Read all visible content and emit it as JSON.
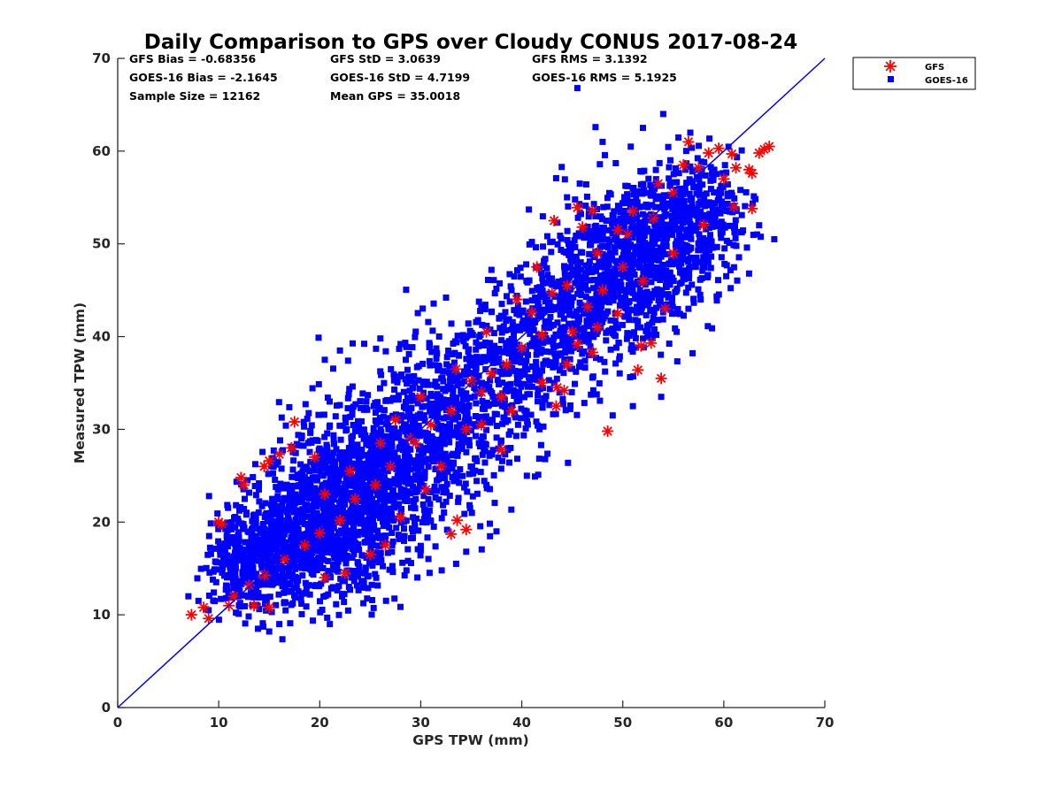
{
  "chart_data": {
    "type": "scatter",
    "title": "Daily Comparison to GPS over Cloudy CONUS 2017-08-24",
    "xlabel": "GPS TPW (mm)",
    "ylabel": "Measured TPW (mm)",
    "xlim": [
      0,
      70
    ],
    "ylim": [
      0,
      70
    ],
    "xticks": [
      "0",
      "10",
      "20",
      "30",
      "40",
      "50",
      "60",
      "70"
    ],
    "yticks": [
      "0",
      "10",
      "20",
      "30",
      "40",
      "50",
      "60",
      "70"
    ],
    "grid": false,
    "legend_position": "outside-top-right",
    "one_to_one_line": {
      "x": [
        0,
        70
      ],
      "y": [
        0,
        70
      ],
      "color": "#0000ff"
    },
    "stats": {
      "gfs_bias": "GFS Bias = -0.68356",
      "gfs_std": "GFS StD = 3.0639",
      "gfs_rms": "GFS RMS = 3.1392",
      "goes_bias": "GOES-16 Bias = -2.1645",
      "goes_std": "GOES-16 StD = 4.7199",
      "goes_rms": "GOES-16 RMS = 5.1925",
      "sample_size": "Sample Size = 12162",
      "mean_gps": "Mean GPS = 35.0018"
    },
    "series": [
      {
        "name": "GFS",
        "marker": "asterisk",
        "color": "#ff0000",
        "points": [
          [
            7.3,
            10.0
          ],
          [
            8.5,
            10.8
          ],
          [
            9.0,
            9.6
          ],
          [
            10.0,
            20.0
          ],
          [
            10.3,
            19.8
          ],
          [
            12.2,
            24.8
          ],
          [
            12.5,
            24.0
          ],
          [
            14.5,
            26.0
          ],
          [
            15.0,
            26.6
          ],
          [
            16.0,
            27.3
          ],
          [
            17.5,
            30.8
          ],
          [
            17.2,
            28.0
          ],
          [
            19.5,
            27.0
          ],
          [
            33.6,
            20.2
          ],
          [
            34.5,
            19.2
          ],
          [
            33.0,
            18.7
          ],
          [
            38.0,
            27.8
          ],
          [
            41.0,
            42.6
          ],
          [
            43.0,
            44.7
          ],
          [
            43.2,
            52.5
          ],
          [
            43.5,
            34.5
          ],
          [
            44.2,
            34.2
          ],
          [
            43.4,
            32.5
          ],
          [
            45.5,
            53.9
          ],
          [
            46.0,
            51.8
          ],
          [
            47.0,
            53.6
          ],
          [
            45.5,
            39.2
          ],
          [
            47.0,
            38.3
          ],
          [
            48.5,
            29.8
          ],
          [
            49.5,
            51.5
          ],
          [
            50.5,
            51.0
          ],
          [
            51.5,
            36.4
          ],
          [
            51.8,
            39.0
          ],
          [
            52.8,
            39.3
          ],
          [
            53.8,
            35.5
          ],
          [
            54.2,
            43.0
          ],
          [
            56.5,
            61.0
          ],
          [
            57.5,
            58.2
          ],
          [
            58.5,
            59.8
          ],
          [
            59.5,
            60.3
          ],
          [
            60.0,
            57.0
          ],
          [
            60.8,
            59.7
          ],
          [
            61.2,
            58.2
          ],
          [
            62.5,
            58.0
          ],
          [
            62.8,
            57.6
          ],
          [
            62.8,
            53.8
          ],
          [
            63.5,
            59.8
          ],
          [
            64.0,
            60.2
          ],
          [
            64.5,
            60.5
          ],
          [
            61.0,
            54.0
          ],
          [
            55.0,
            55.5
          ],
          [
            53.0,
            52.8
          ],
          [
            50.0,
            47.5
          ],
          [
            48.0,
            45.0
          ],
          [
            46.5,
            43.2
          ],
          [
            45.0,
            40.5
          ],
          [
            42.0,
            40.2
          ],
          [
            40.0,
            38.8
          ],
          [
            38.5,
            37.0
          ],
          [
            37.0,
            36.0
          ],
          [
            35.0,
            35.2
          ],
          [
            33.0,
            32.0
          ],
          [
            31.0,
            30.5
          ],
          [
            29.5,
            28.5
          ],
          [
            27.0,
            26.0
          ],
          [
            25.5,
            24.0
          ],
          [
            23.5,
            22.5
          ],
          [
            22.0,
            20.2
          ],
          [
            20.0,
            18.8
          ],
          [
            18.5,
            17.5
          ],
          [
            16.5,
            16.0
          ],
          [
            14.5,
            14.3
          ],
          [
            13.0,
            13.2
          ],
          [
            11.5,
            12.0
          ],
          [
            11.0,
            11.0
          ],
          [
            13.5,
            11.0
          ],
          [
            15.0,
            10.8
          ],
          [
            20.5,
            14.0
          ],
          [
            22.5,
            14.5
          ],
          [
            25.0,
            16.5
          ],
          [
            26.5,
            17.5
          ],
          [
            28.0,
            20.5
          ],
          [
            30.5,
            23.5
          ],
          [
            32.0,
            26.0
          ],
          [
            36.0,
            30.5
          ],
          [
            39.0,
            32.0
          ],
          [
            42.0,
            35.0
          ],
          [
            44.5,
            37.0
          ],
          [
            47.5,
            41.0
          ],
          [
            49.5,
            42.5
          ],
          [
            52.0,
            46.0
          ],
          [
            55.0,
            49.0
          ],
          [
            58.0,
            52.0
          ],
          [
            26.0,
            28.5
          ],
          [
            30.0,
            33.5
          ],
          [
            33.5,
            36.5
          ],
          [
            36.5,
            40.5
          ],
          [
            39.5,
            44.0
          ],
          [
            41.5,
            47.5
          ],
          [
            23.0,
            25.5
          ],
          [
            20.5,
            23.0
          ],
          [
            27.5,
            31.0
          ],
          [
            53.5,
            56.5
          ],
          [
            56.0,
            58.5
          ],
          [
            51.0,
            53.5
          ],
          [
            47.5,
            49.0
          ],
          [
            36.0,
            34.0
          ],
          [
            38.0,
            33.5
          ],
          [
            44.5,
            45.5
          ],
          [
            34.5,
            30.0
          ],
          [
            29.0,
            29.0
          ]
        ]
      },
      {
        "name": "GOES-16",
        "marker": "square",
        "color": "#0000ff",
        "clusters": [
          {
            "cx": 12.5,
            "cy": 15.5,
            "sx": 1.7,
            "sy": 2.7,
            "n": 280
          },
          {
            "cx": 17.0,
            "cy": 18.5,
            "sx": 2.6,
            "sy": 3.8,
            "n": 520
          },
          {
            "cx": 22.0,
            "cy": 21.5,
            "sx": 3.0,
            "sy": 4.8,
            "n": 760
          },
          {
            "cx": 27.0,
            "cy": 26.0,
            "sx": 3.0,
            "sy": 4.8,
            "n": 560
          },
          {
            "cx": 33.0,
            "cy": 31.0,
            "sx": 3.0,
            "sy": 4.5,
            "n": 420
          },
          {
            "cx": 39.0,
            "cy": 36.5,
            "sx": 3.0,
            "sy": 4.4,
            "n": 360
          },
          {
            "cx": 44.5,
            "cy": 42.0,
            "sx": 3.0,
            "sy": 4.2,
            "n": 380
          },
          {
            "cx": 49.5,
            "cy": 47.0,
            "sx": 3.0,
            "sy": 4.2,
            "n": 500
          },
          {
            "cx": 54.5,
            "cy": 50.5,
            "sx": 3.0,
            "sy": 3.8,
            "n": 480
          },
          {
            "cx": 58.5,
            "cy": 53.5,
            "sx": 2.0,
            "sy": 3.2,
            "n": 180
          }
        ],
        "points": [
          [
            45.5,
            66.8
          ],
          [
            54.0,
            64.0
          ],
          [
            52.0,
            62.5
          ],
          [
            48.0,
            61.0
          ],
          [
            65.0,
            50.5
          ],
          [
            63.5,
            52.0
          ],
          [
            62.5,
            46.8
          ],
          [
            37.0,
            47.2
          ],
          [
            15.0,
            8.2
          ],
          [
            16.0,
            9.0
          ],
          [
            21.0,
            9.0
          ],
          [
            33.5,
            15.5
          ],
          [
            34.5,
            16.8
          ],
          [
            37.5,
            19.0
          ],
          [
            30.0,
            17.0
          ],
          [
            22.0,
            38.5
          ],
          [
            26.0,
            39.8
          ],
          [
            28.0,
            39.2
          ],
          [
            32.5,
            44.2
          ],
          [
            53.8,
            33.5
          ],
          [
            51.0,
            32.5
          ],
          [
            49.0,
            31.5
          ],
          [
            20.5,
            37.5
          ],
          [
            40.5,
            25.0
          ],
          [
            36.5,
            24.0
          ],
          [
            7.0,
            12.0
          ],
          [
            8.0,
            11.5
          ],
          [
            9.0,
            10.5
          ]
        ]
      }
    ]
  }
}
